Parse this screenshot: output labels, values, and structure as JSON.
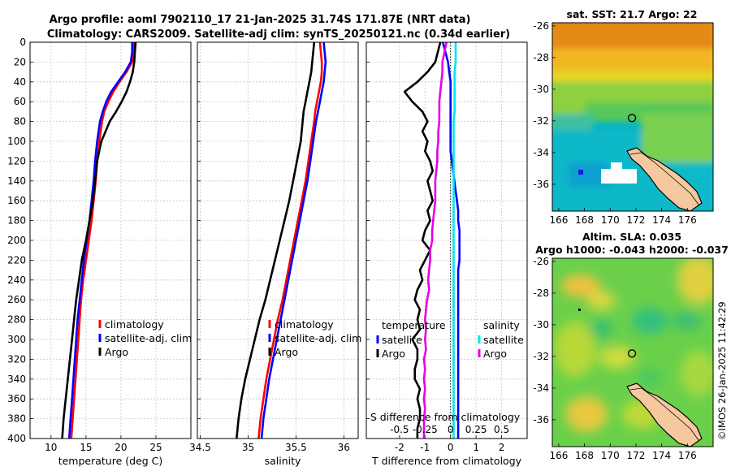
{
  "title": {
    "line1": "Argo profile: aoml 7902110_17 21-Jan-2025 31.74S 171.87E (NRT data)",
    "line2": "Climatology: CARS2009. Satellite-adj clim: synTS_20250121.nc (0.34d earlier)"
  },
  "timestamp": "©IMOS 26-Jan-2025 11:42:29",
  "colors": {
    "climatology": "#ff0000",
    "satellite": "#0000ff",
    "argo": "#000000",
    "s_argo": "#e600e6",
    "s_satellite": "#00e5ee"
  },
  "chart_data": [
    {
      "type": "line",
      "id": "temperature",
      "xlabel": "temperature (deg C)",
      "xlim": [
        7,
        30
      ],
      "ylim": [
        0,
        400
      ],
      "y_reversed": true,
      "xticks": [
        10,
        15,
        20,
        25
      ],
      "xtick_labels": [
        "10",
        "15",
        "20",
        "25"
      ],
      "yticks": [
        0,
        20,
        40,
        60,
        80,
        100,
        120,
        140,
        160,
        180,
        200,
        220,
        240,
        260,
        280,
        300,
        320,
        340,
        360,
        380,
        400
      ],
      "ytick_labels": [
        "0",
        "20",
        "40",
        "60",
        "80",
        "100",
        "120",
        "140",
        "160",
        "180",
        "200",
        "220",
        "240",
        "260",
        "280",
        "300",
        "320",
        "340",
        "360",
        "380",
        "400"
      ],
      "depth": [
        0,
        10,
        20,
        30,
        40,
        50,
        60,
        70,
        80,
        100,
        120,
        140,
        160,
        180,
        200,
        220,
        240,
        260,
        280,
        300,
        320,
        340,
        360,
        380,
        400
      ],
      "legend": [
        "climatology",
        "satellite-adj. clim",
        "Argo"
      ],
      "series": [
        {
          "name": "climatology",
          "color": "#ff0000",
          "values": [
            21.9,
            21.9,
            21.6,
            20.8,
            19.8,
            18.9,
            18.2,
            17.6,
            17.3,
            16.9,
            16.6,
            16.4,
            16.1,
            15.8,
            15.4,
            15.0,
            14.6,
            14.3,
            14.1,
            13.9,
            13.7,
            13.5,
            13.3,
            13.1,
            12.9
          ]
        },
        {
          "name": "satellite-adj. clim",
          "color": "#0000ff",
          "values": [
            21.6,
            21.6,
            21.4,
            20.6,
            19.6,
            18.6,
            17.9,
            17.4,
            17.0,
            16.6,
            16.3,
            16.1,
            15.8,
            15.5,
            15.1,
            14.7,
            14.4,
            14.1,
            13.8,
            13.6,
            13.4,
            13.2,
            13.0,
            12.8,
            12.6
          ]
        },
        {
          "name": "Argo",
          "color": "#000000",
          "values": [
            22.1,
            22.0,
            21.9,
            21.7,
            21.3,
            20.8,
            20.1,
            19.3,
            18.4,
            17.2,
            16.6,
            16.3,
            16.0,
            15.5,
            15.0,
            14.4,
            14.0,
            13.6,
            13.3,
            13.0,
            12.7,
            12.4,
            12.1,
            11.8,
            11.6
          ]
        }
      ]
    },
    {
      "type": "line",
      "id": "salinity",
      "xlabel": "salinity",
      "xlim": [
        34.47,
        36.15
      ],
      "ylim": [
        0,
        400
      ],
      "y_reversed": true,
      "xticks": [
        34.5,
        35,
        35.5,
        36
      ],
      "xtick_labels": [
        "34.5",
        "35",
        "35.5",
        "36"
      ],
      "depth": [
        0,
        10,
        20,
        30,
        40,
        50,
        60,
        70,
        80,
        100,
        120,
        140,
        160,
        180,
        200,
        220,
        240,
        260,
        280,
        300,
        320,
        340,
        360,
        380,
        400
      ],
      "legend": [
        "climatology",
        "satellite-adj. clim",
        "Argo"
      ],
      "series": [
        {
          "name": "climatology",
          "color": "#ff0000",
          "values": [
            35.75,
            35.76,
            35.77,
            35.77,
            35.76,
            35.74,
            35.72,
            35.7,
            35.69,
            35.66,
            35.63,
            35.6,
            35.56,
            35.52,
            35.48,
            35.44,
            35.4,
            35.36,
            35.31,
            35.27,
            35.23,
            35.19,
            35.16,
            35.13,
            35.11
          ]
        },
        {
          "name": "satellite-adj. clim",
          "color": "#0000ff",
          "values": [
            35.79,
            35.8,
            35.81,
            35.8,
            35.79,
            35.77,
            35.75,
            35.73,
            35.71,
            35.68,
            35.65,
            35.62,
            35.58,
            35.54,
            35.5,
            35.46,
            35.42,
            35.38,
            35.34,
            35.3,
            35.26,
            35.22,
            35.19,
            35.16,
            35.14
          ]
        },
        {
          "name": "Argo",
          "color": "#000000",
          "values": [
            35.69,
            35.68,
            35.67,
            35.66,
            35.64,
            35.62,
            35.6,
            35.58,
            35.57,
            35.55,
            35.51,
            35.47,
            35.43,
            35.38,
            35.33,
            35.28,
            35.23,
            35.18,
            35.12,
            35.07,
            35.02,
            34.97,
            34.93,
            34.9,
            34.88
          ]
        }
      ]
    },
    {
      "type": "line",
      "id": "difference",
      "xlabel": "T difference from climatology",
      "xlabel_top": "S difference from climatology",
      "xlim": [
        -3.3,
        3.0
      ],
      "xticks": [
        -2,
        -1,
        0,
        1,
        2
      ],
      "xtick_labels": [
        "-2",
        "-1",
        "0",
        "1",
        "2"
      ],
      "s_xticks": [
        -0.5,
        -0.25,
        0,
        0.25,
        0.5
      ],
      "s_xtick_labels": [
        "-0.5",
        "-0.25",
        "0",
        "0.25",
        "0.5"
      ],
      "ylim": [
        0,
        400
      ],
      "y_reversed": true,
      "legend_temperature": {
        "heading": "temperature",
        "items": [
          "satellite",
          "Argo"
        ]
      },
      "legend_salinity": {
        "heading": "salinity",
        "items": [
          "satellite",
          "Argo"
        ]
      },
      "depth": [
        0,
        10,
        20,
        30,
        40,
        50,
        60,
        70,
        80,
        90,
        100,
        110,
        120,
        130,
        140,
        150,
        160,
        170,
        180,
        190,
        200,
        210,
        220,
        230,
        240,
        250,
        260,
        270,
        280,
        290,
        300,
        310,
        320,
        330,
        340,
        350,
        360,
        370,
        380,
        390,
        400
      ],
      "series": [
        {
          "name": "T satellite",
          "color": "#0000ff",
          "values": [
            -0.3,
            -0.2,
            -0.1,
            -0.05,
            0,
            0,
            0,
            0,
            0,
            0,
            0,
            0,
            0.05,
            0.1,
            0.15,
            0.2,
            0.25,
            0.3,
            0.3,
            0.35,
            0.35,
            0.35,
            0.35,
            0.3,
            0.3,
            0.3,
            0.3,
            0.3,
            0.3,
            0.3,
            0.3,
            0.3,
            0.3,
            0.3,
            0.3,
            0.3,
            0.3,
            0.3,
            0.3,
            0.3,
            0.3
          ]
        },
        {
          "name": "T Argo",
          "color": "#000000",
          "values": [
            -0.4,
            -0.5,
            -0.6,
            -0.9,
            -1.3,
            -1.8,
            -1.5,
            -1.1,
            -0.9,
            -1.1,
            -0.9,
            -1.0,
            -0.8,
            -0.7,
            -0.9,
            -0.8,
            -0.7,
            -0.9,
            -0.8,
            -1.0,
            -1.1,
            -0.8,
            -1.0,
            -1.2,
            -1.1,
            -1.3,
            -1.4,
            -1.2,
            -1.3,
            -1.2,
            -1.5,
            -1.3,
            -1.3,
            -1.4,
            -1.4,
            -1.2,
            -1.3,
            -1.2,
            -1.2,
            -1.3,
            -1.3
          ]
        },
        {
          "name": "S satellite",
          "color": "#00e5ee",
          "values": [
            0.05,
            0.05,
            0.05,
            0.04,
            0.04,
            0.04,
            0.04,
            0.04,
            0.03,
            0.03,
            0.03,
            0.03,
            0.03,
            0.03,
            0.03,
            0.03,
            0.03,
            0.03,
            0.03,
            0.03,
            0.03,
            0.03,
            0.03,
            0.03,
            0.03,
            0.03,
            0.03,
            0.03,
            0.03,
            0.03,
            0.03,
            0.03,
            0.03,
            0.03,
            0.03,
            0.03,
            0.03,
            0.03,
            0.03,
            0.03,
            0.03
          ]
        },
        {
          "name": "S Argo",
          "color": "#e600e6",
          "values": [
            -0.04,
            -0.06,
            -0.08,
            -0.08,
            -0.09,
            -0.1,
            -0.11,
            -0.11,
            -0.11,
            -0.12,
            -0.12,
            -0.13,
            -0.13,
            -0.14,
            -0.15,
            -0.15,
            -0.15,
            -0.16,
            -0.17,
            -0.18,
            -0.18,
            -0.2,
            -0.2,
            -0.21,
            -0.22,
            -0.21,
            -0.23,
            -0.24,
            -0.25,
            -0.24,
            -0.25,
            -0.24,
            -0.26,
            -0.25,
            -0.26,
            -0.25,
            -0.26,
            -0.25,
            -0.26,
            -0.26,
            -0.26
          ]
        }
      ]
    },
    {
      "type": "heatmap",
      "id": "sst-map",
      "title": "sat. SST: 21.7 Argo: 22",
      "xlim": [
        165.5,
        178
      ],
      "ylim": [
        -37.7,
        -25.8
      ],
      "xticks": [
        166,
        168,
        170,
        172,
        174,
        176
      ],
      "xtick_labels": [
        "166",
        "168",
        "170",
        "172",
        "174",
        "176"
      ],
      "yticks": [
        -26,
        -28,
        -30,
        -32,
        -34,
        -36
      ],
      "ytick_labels": [
        "-26",
        "-28",
        "-30",
        "-32",
        "-34",
        "-36"
      ],
      "argo_position": [
        171.87,
        -31.74
      ]
    },
    {
      "type": "heatmap",
      "id": "sla-map",
      "title_line1": "Altim. SLA: 0.035",
      "title_line2": "Argo h1000: -0.043 h2000: -0.037",
      "xlim": [
        165.5,
        178
      ],
      "ylim": [
        -37.7,
        -25.8
      ],
      "xticks": [
        166,
        168,
        170,
        172,
        174,
        176
      ],
      "xtick_labels": [
        "166",
        "168",
        "170",
        "172",
        "174",
        "176"
      ],
      "yticks": [
        -26,
        -28,
        -30,
        -32,
        -34,
        -36
      ],
      "ytick_labels": [
        "-26",
        "-28",
        "-30",
        "-32",
        "-34",
        "-36"
      ],
      "argo_position": [
        171.87,
        -31.74
      ]
    }
  ]
}
